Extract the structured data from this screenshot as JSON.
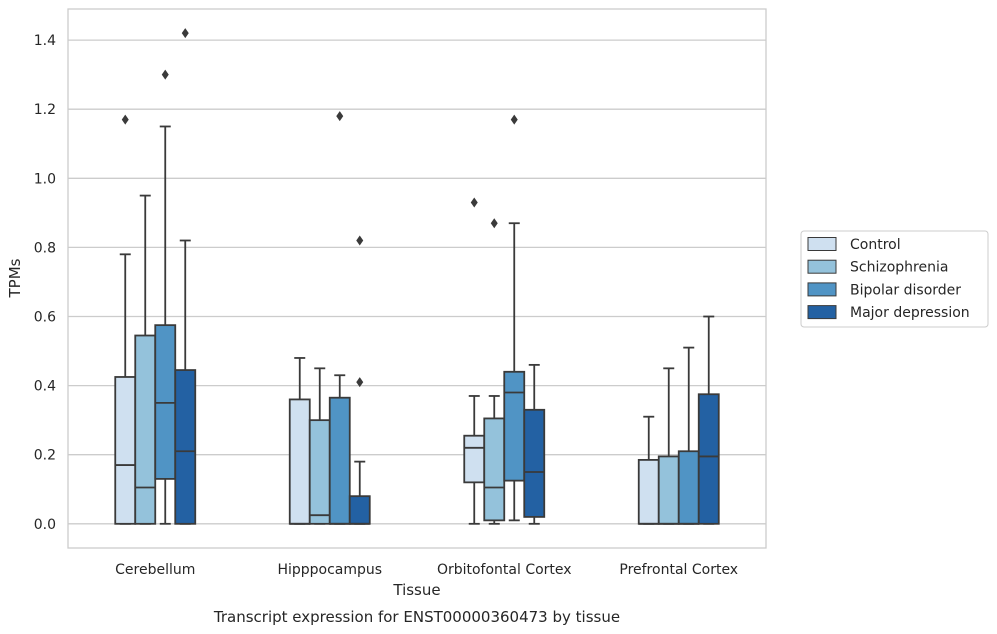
{
  "chart_data": {
    "type": "boxplot",
    "title": "",
    "caption": "Transcript expression for ENST00000360473 by tissue",
    "xlabel": "Tissue",
    "ylabel": "TPMs",
    "ylim": [
      -0.07,
      1.49
    ],
    "yticks": [
      "0.0",
      "0.2",
      "0.4",
      "0.6",
      "0.8",
      "1.0",
      "1.2",
      "1.4"
    ],
    "ytick_values": [
      0,
      0.2,
      0.4,
      0.6,
      0.8,
      1.0,
      1.2,
      1.4
    ],
    "grid": true,
    "legend_position": "right",
    "categories": [
      "Cerebellum",
      "Hipppocampus",
      "Orbitofontal Cortex",
      "Prefrontal Cortex"
    ],
    "series": [
      {
        "name": "Control",
        "color": "#cfe0f0",
        "boxes": [
          {
            "whislo": 0.0,
            "q1": 0.0,
            "med": 0.17,
            "q3": 0.425,
            "whishi": 0.78,
            "fliers": [
              1.17
            ]
          },
          {
            "whislo": 0.0,
            "q1": 0.0,
            "med": 0.0,
            "q3": 0.36,
            "whishi": 0.48,
            "fliers": []
          },
          {
            "whislo": 0.0,
            "q1": 0.12,
            "med": 0.22,
            "q3": 0.255,
            "whishi": 0.37,
            "fliers": [
              0.93
            ]
          },
          {
            "whislo": 0.0,
            "q1": 0.0,
            "med": 0.0,
            "q3": 0.185,
            "whishi": 0.31,
            "fliers": []
          }
        ]
      },
      {
        "name": "Schizophrenia",
        "color": "#94c2db",
        "boxes": [
          {
            "whislo": 0.0,
            "q1": 0.0,
            "med": 0.105,
            "q3": 0.545,
            "whishi": 0.95,
            "fliers": []
          },
          {
            "whislo": 0.0,
            "q1": 0.0,
            "med": 0.025,
            "q3": 0.3,
            "whishi": 0.45,
            "fliers": []
          },
          {
            "whislo": 0.0,
            "q1": 0.01,
            "med": 0.105,
            "q3": 0.305,
            "whishi": 0.37,
            "fliers": [
              0.87
            ]
          },
          {
            "whislo": 0.0,
            "q1": 0.0,
            "med": 0.0,
            "q3": 0.195,
            "whishi": 0.45,
            "fliers": []
          }
        ]
      },
      {
        "name": "Bipolar disorder",
        "color": "#5094c5",
        "boxes": [
          {
            "whislo": 0.0,
            "q1": 0.13,
            "med": 0.35,
            "q3": 0.575,
            "whishi": 1.15,
            "fliers": [
              1.3
            ]
          },
          {
            "whislo": 0.0,
            "q1": 0.0,
            "med": 0.0,
            "q3": 0.365,
            "whishi": 0.43,
            "fliers": [
              1.18
            ]
          },
          {
            "whislo": 0.01,
            "q1": 0.125,
            "med": 0.38,
            "q3": 0.44,
            "whishi": 0.87,
            "fliers": [
              1.17
            ]
          },
          {
            "whislo": 0.0,
            "q1": 0.0,
            "med": 0.0,
            "q3": 0.21,
            "whishi": 0.51,
            "fliers": []
          }
        ]
      },
      {
        "name": "Major depression",
        "color": "#2361a3",
        "boxes": [
          {
            "whislo": 0.0,
            "q1": 0.0,
            "med": 0.21,
            "q3": 0.445,
            "whishi": 0.82,
            "fliers": [
              1.42
            ]
          },
          {
            "whislo": 0.0,
            "q1": 0.0,
            "med": 0.0,
            "q3": 0.08,
            "whishi": 0.18,
            "fliers": [
              0.41,
              0.82
            ]
          },
          {
            "whislo": 0.0,
            "q1": 0.02,
            "med": 0.15,
            "q3": 0.33,
            "whishi": 0.46,
            "fliers": []
          },
          {
            "whislo": 0.0,
            "q1": 0.0,
            "med": 0.195,
            "q3": 0.375,
            "whishi": 0.6,
            "fliers": []
          }
        ]
      }
    ]
  }
}
